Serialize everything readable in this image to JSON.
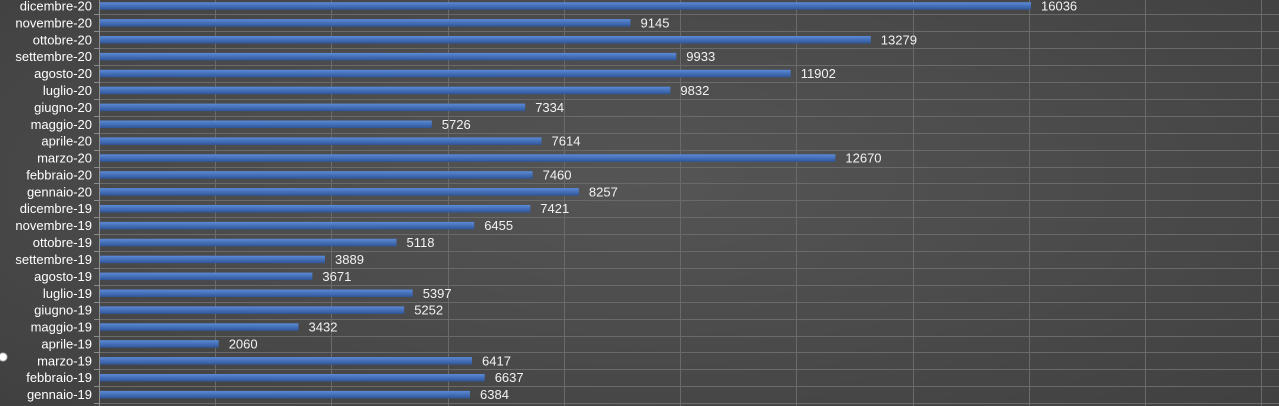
{
  "chart_data": {
    "type": "bar",
    "orientation": "horizontal",
    "title": "",
    "xlabel": "",
    "ylabel": "",
    "categories": [
      "dicembre-20",
      "novembre-20",
      "ottobre-20",
      "settembre-20",
      "agosto-20",
      "luglio-20",
      "giugno-20",
      "maggio-20",
      "aprile-20",
      "marzo-20",
      "febbraio-20",
      "gennaio-20",
      "dicembre-19",
      "novembre-19",
      "ottobre-19",
      "settembre-19",
      "agosto-19",
      "luglio-19",
      "giugno-19",
      "maggio-19",
      "aprile-19",
      "marzo-19",
      "febbraio-19",
      "gennaio-19"
    ],
    "values": [
      16036,
      9145,
      13279,
      9933,
      11902,
      9832,
      7334,
      5726,
      7614,
      12670,
      7460,
      8257,
      7421,
      6455,
      5118,
      3889,
      3671,
      5397,
      5252,
      3432,
      2060,
      6417,
      6637,
      6384
    ],
    "xlim": [
      0,
      20000
    ],
    "grid": true,
    "data_labels": true,
    "legend": "none",
    "colors": {
      "bar": "#4472c4",
      "bar_top": "#5b8ad8",
      "background": "#4a4a4a",
      "text": "#ffffff"
    }
  }
}
